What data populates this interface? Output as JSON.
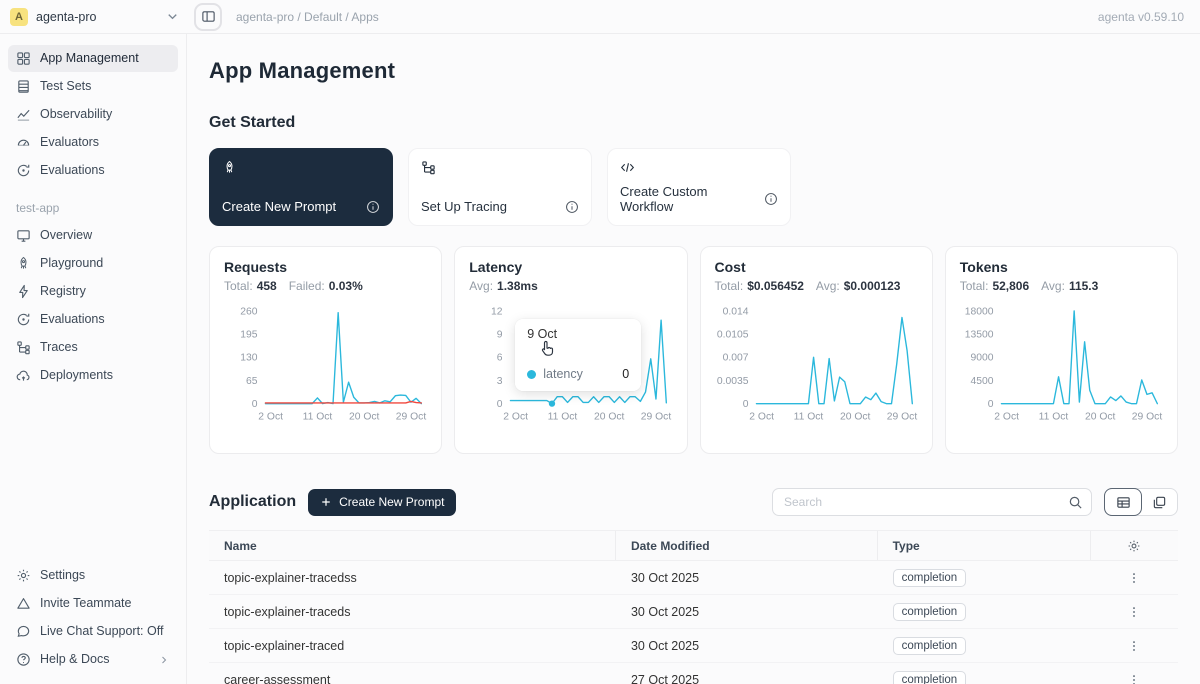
{
  "header": {
    "workspace": {
      "avatar": "A",
      "name": "agenta-pro"
    },
    "breadcrumb": "agenta-pro / Default / Apps",
    "version": "agenta v0.59.10"
  },
  "sidebar": {
    "main_items": [
      {
        "label": "App Management",
        "icon": "grid-icon",
        "active": true
      },
      {
        "label": "Test Sets",
        "icon": "test-sets-icon"
      },
      {
        "label": "Observability",
        "icon": "observability-icon"
      },
      {
        "label": "Evaluators",
        "icon": "gauge-icon"
      },
      {
        "label": "Evaluations",
        "icon": "evaluations-icon"
      }
    ],
    "section_label": "test-app",
    "app_items": [
      {
        "label": "Overview",
        "icon": "monitor-icon"
      },
      {
        "label": "Playground",
        "icon": "rocket-icon"
      },
      {
        "label": "Registry",
        "icon": "bolt-icon"
      },
      {
        "label": "Evaluations",
        "icon": "evaluations-icon"
      },
      {
        "label": "Traces",
        "icon": "tree-icon"
      },
      {
        "label": "Deployments",
        "icon": "cloud-icon"
      }
    ],
    "footer_items": [
      {
        "label": "Settings",
        "icon": "gear-icon"
      },
      {
        "label": "Invite Teammate",
        "icon": "invite-icon"
      },
      {
        "label": "Live Chat Support: Off",
        "icon": "chat-icon"
      },
      {
        "label": "Help & Docs",
        "icon": "help-icon",
        "chevron": true
      }
    ]
  },
  "main": {
    "page_title": "App Management",
    "get_started": {
      "title": "Get Started",
      "cards": [
        {
          "label": "Create New Prompt",
          "icon": "rocket-icon",
          "dark": true
        },
        {
          "label": "Set Up Tracing",
          "icon": "tree-icon",
          "dark": false
        },
        {
          "label": "Create Custom Workflow",
          "icon": "code-icon",
          "dark": false
        }
      ]
    },
    "application": {
      "title": "Application",
      "create_button": "Create New Prompt",
      "search_placeholder": "Search"
    }
  },
  "chart_data": [
    {
      "type": "line",
      "title": "Requests",
      "stats": [
        {
          "label": "Total:",
          "value": "458"
        },
        {
          "label": "Failed:",
          "value": "0.03%"
        }
      ],
      "x_days": 31,
      "x_ticks": [
        {
          "label": "2 Oct",
          "index": 1
        },
        {
          "label": "11 Oct",
          "index": 10
        },
        {
          "label": "20 Oct",
          "index": 19
        },
        {
          "label": "29 Oct",
          "index": 28
        }
      ],
      "y_ticks": [
        "260",
        "195",
        "130",
        "65",
        "0"
      ],
      "ylim": [
        0,
        260
      ],
      "legend_position": "none",
      "grid": false,
      "series": [
        {
          "name": "requests",
          "color": "#2bb8dc",
          "values": [
            0,
            0,
            0,
            0,
            0,
            0,
            0,
            0,
            0,
            0,
            16,
            0,
            3,
            0,
            255,
            4,
            60,
            18,
            2,
            2,
            3,
            6,
            2,
            8,
            5,
            22,
            24,
            23,
            4,
            15,
            0
          ]
        },
        {
          "name": "failed",
          "color": "#f0483e",
          "values": [
            2,
            2,
            2,
            2,
            2,
            2,
            2,
            2,
            2,
            2,
            2,
            2,
            2,
            2,
            2,
            2,
            2,
            2,
            2,
            2,
            2,
            2,
            2,
            2,
            2,
            2,
            2,
            2,
            6,
            3,
            2
          ]
        }
      ]
    },
    {
      "type": "line",
      "title": "Latency",
      "stats": [
        {
          "label": "Avg:",
          "value": "1.38ms"
        }
      ],
      "x_days": 31,
      "x_ticks": [
        {
          "label": "2 Oct",
          "index": 1
        },
        {
          "label": "11 Oct",
          "index": 10
        },
        {
          "label": "20 Oct",
          "index": 19
        },
        {
          "label": "29 Oct",
          "index": 28
        }
      ],
      "y_ticks": [
        "12",
        "9",
        "6",
        "3",
        "0"
      ],
      "ylim": [
        0,
        12
      ],
      "legend_position": "none",
      "grid": false,
      "series": [
        {
          "name": "latency",
          "color": "#2bb8dc",
          "values": [
            0.4,
            0.4,
            0.4,
            0.4,
            0.4,
            0.4,
            0.4,
            0.4,
            0,
            0.9,
            0.9,
            0.15,
            0.9,
            0.9,
            0.15,
            0.15,
            0.9,
            0.15,
            0.9,
            0.9,
            0.15,
            0.9,
            0.15,
            0.9,
            0.9,
            0.3,
            1.5,
            5.8,
            0.6,
            10.8,
            0.1
          ]
        }
      ],
      "hover": {
        "index": 8,
        "value": 0
      },
      "tooltip": {
        "date": "9 Oct",
        "series": "latency",
        "value": "0"
      }
    },
    {
      "type": "line",
      "title": "Cost",
      "stats": [
        {
          "label": "Total:",
          "value": "$0.056452"
        },
        {
          "label": "Avg:",
          "value": "$0.000123"
        }
      ],
      "x_days": 31,
      "x_ticks": [
        {
          "label": "2 Oct",
          "index": 1
        },
        {
          "label": "11 Oct",
          "index": 10
        },
        {
          "label": "20 Oct",
          "index": 19
        },
        {
          "label": "29 Oct",
          "index": 28
        }
      ],
      "y_ticks": [
        "0.014",
        "0.0105",
        "0.007",
        "0.0035",
        "0"
      ],
      "ylim": [
        0,
        0.014
      ],
      "legend_position": "none",
      "grid": false,
      "series": [
        {
          "name": "cost",
          "color": "#2bb8dc",
          "values": [
            0,
            0,
            0,
            0,
            0,
            0,
            0,
            0,
            0,
            0,
            0,
            0.007,
            0,
            0,
            0.0068,
            0.0004,
            0.004,
            0.0033,
            0,
            0,
            0,
            0.001,
            0.0006,
            0.0016,
            0.0003,
            0,
            0,
            0.006,
            0.013,
            0.008,
            0
          ]
        }
      ]
    },
    {
      "type": "line",
      "title": "Tokens",
      "stats": [
        {
          "label": "Total:",
          "value": "52,806"
        },
        {
          "label": "Avg:",
          "value": "115.3"
        }
      ],
      "x_days": 31,
      "x_ticks": [
        {
          "label": "2 Oct",
          "index": 1
        },
        {
          "label": "11 Oct",
          "index": 10
        },
        {
          "label": "20 Oct",
          "index": 19
        },
        {
          "label": "29 Oct",
          "index": 28
        }
      ],
      "y_ticks": [
        "18000",
        "13500",
        "9000",
        "4500",
        "0"
      ],
      "ylim": [
        0,
        18000
      ],
      "legend_position": "none",
      "grid": false,
      "series": [
        {
          "name": "tokens",
          "color": "#2bb8dc",
          "values": [
            0,
            0,
            0,
            0,
            0,
            0,
            0,
            0,
            0,
            0,
            0,
            5200,
            0,
            0,
            18000,
            300,
            12000,
            2600,
            0,
            0,
            0,
            1300,
            600,
            1500,
            300,
            0,
            0,
            4600,
            1800,
            2100,
            0
          ]
        }
      ]
    }
  ],
  "table": {
    "columns": [
      "Name",
      "Date Modified",
      "Type"
    ],
    "rows": [
      {
        "name": "topic-explainer-tracedss",
        "date": "30 Oct 2025",
        "type": "completion"
      },
      {
        "name": "topic-explainer-traceds",
        "date": "30 Oct 2025",
        "type": "completion"
      },
      {
        "name": "topic-explainer-traced",
        "date": "30 Oct 2025",
        "type": "completion"
      },
      {
        "name": "career-assessment",
        "date": "27 Oct 2025",
        "type": "completion"
      }
    ]
  },
  "colors": {
    "accent": "#1c2c3e",
    "chart_line": "#2bb8dc",
    "failed_line": "#f0483e",
    "avatar_bg": "#f7e27f"
  }
}
